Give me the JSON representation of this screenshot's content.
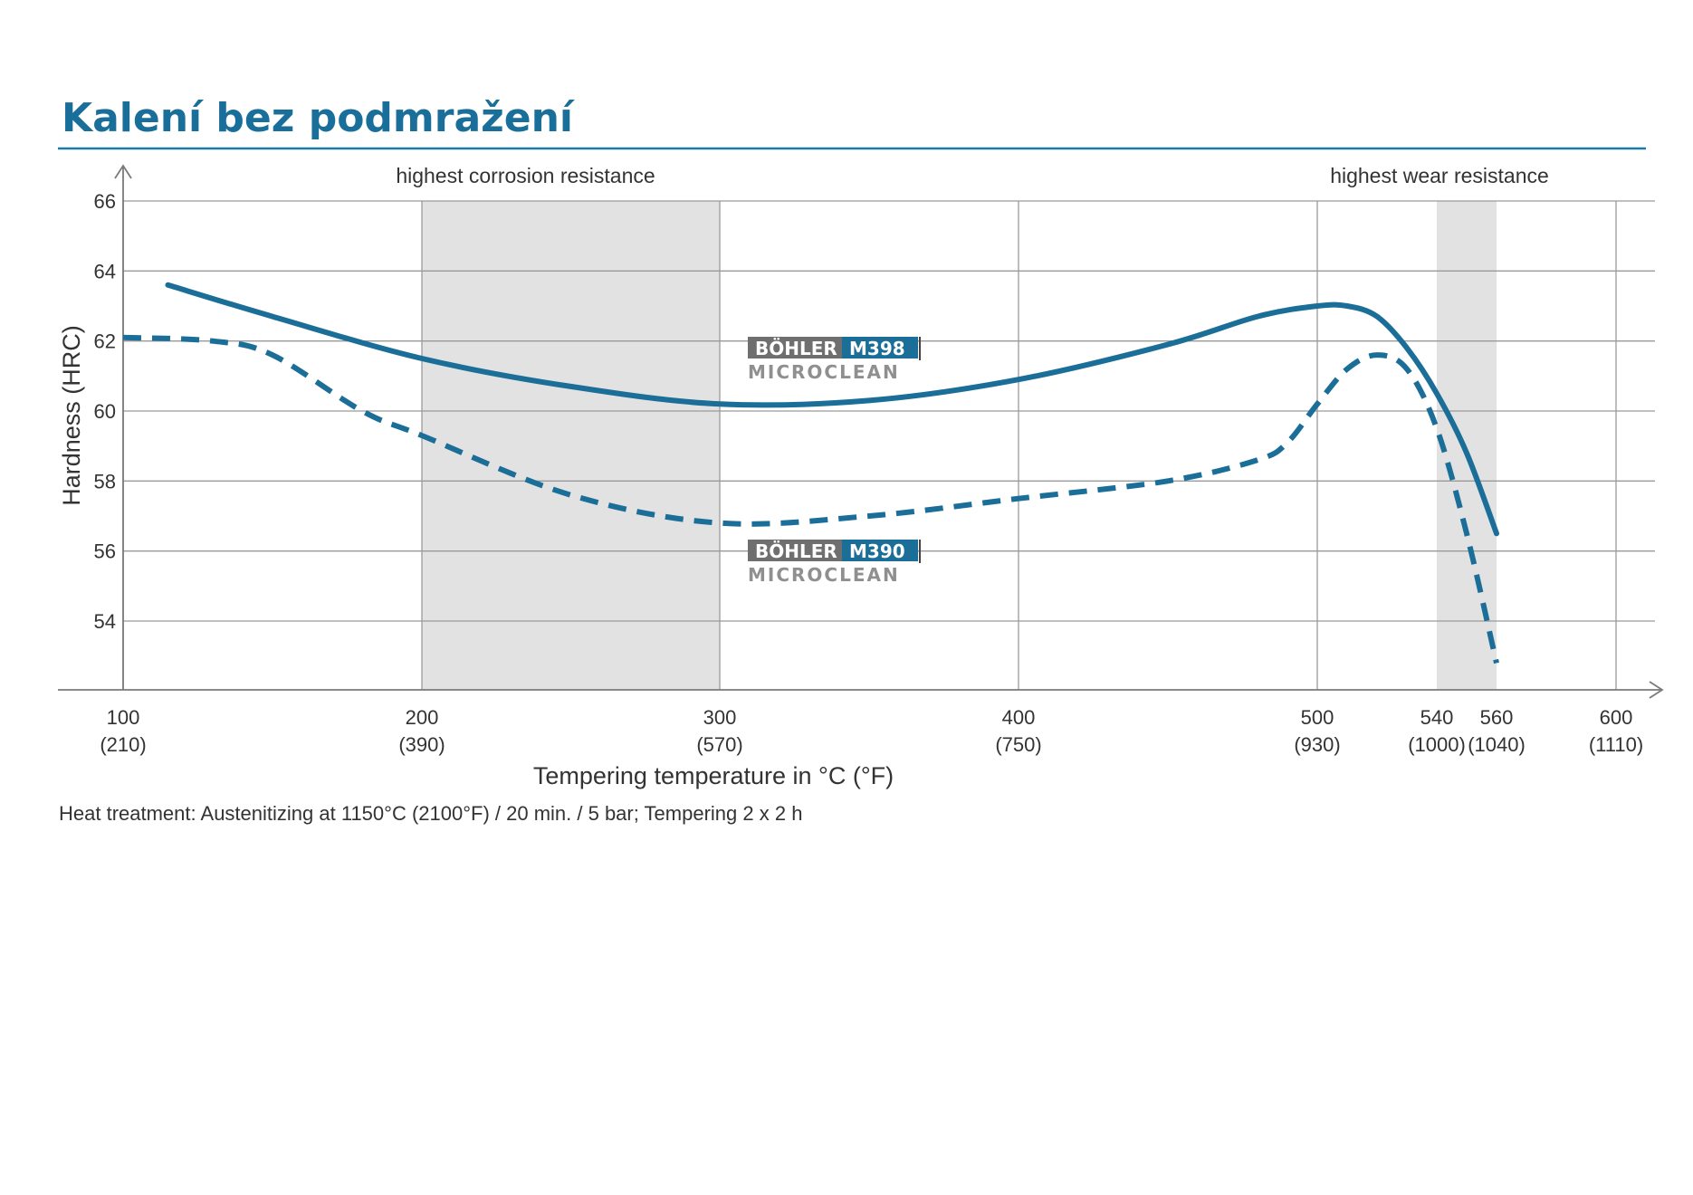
{
  "page": {
    "title": "Kalení bez podmražení"
  },
  "chart_data": {
    "type": "line",
    "xlabel": "Tempering temperature in °C (°F)",
    "ylabel": "Hardness (HRC)",
    "xlim": [
      100,
      600
    ],
    "ylim": [
      52,
      66
    ],
    "x_ticks": [
      {
        "value": 100,
        "label": "100",
        "sublabel": "(210)"
      },
      {
        "value": 200,
        "label": "200",
        "sublabel": "(390)"
      },
      {
        "value": 300,
        "label": "300",
        "sublabel": "(570)"
      },
      {
        "value": 400,
        "label": "400",
        "sublabel": "(750)"
      },
      {
        "value": 500,
        "label": "500",
        "sublabel": "(930)"
      },
      {
        "value": 540,
        "label": "540",
        "sublabel": "(1000)"
      },
      {
        "value": 560,
        "label": "560",
        "sublabel": "(1040)"
      },
      {
        "value": 600,
        "label": "600",
        "sublabel": "(1110)"
      }
    ],
    "x_gridlines": [
      100,
      200,
      300,
      400,
      500,
      600
    ],
    "y_ticks": [
      54,
      56,
      58,
      60,
      62,
      64,
      66
    ],
    "grid": true,
    "bands": [
      {
        "x0": 200,
        "x1": 300,
        "label": "highest corrosion resistance"
      },
      {
        "x0": 540,
        "x1": 560,
        "label": "highest wear resistance"
      }
    ],
    "series": [
      {
        "name": "BÖHLER M398 MICROCLEAN",
        "brand": "BÖHLER",
        "grade": "M398",
        "sub": "MICROCLEAN",
        "style": "solid",
        "color": "#1b6e98",
        "x": [
          115,
          150,
          200,
          250,
          300,
          350,
          400,
          450,
          480,
          500,
          510,
          520,
          530,
          540,
          550,
          560
        ],
        "y": [
          63.6,
          62.7,
          61.5,
          60.7,
          60.2,
          60.3,
          60.9,
          61.9,
          62.7,
          63.0,
          63.0,
          62.7,
          61.8,
          60.5,
          58.8,
          56.5
        ]
      },
      {
        "name": "BÖHLER M390 MICROCLEAN",
        "brand": "BÖHLER",
        "grade": "M390",
        "sub": "MICROCLEAN",
        "style": "dashed",
        "color": "#1b6e98",
        "x": [
          100,
          130,
          150,
          180,
          200,
          250,
          300,
          350,
          400,
          450,
          480,
          490,
          500,
          510,
          520,
          530,
          540,
          550,
          560
        ],
        "y": [
          62.1,
          62.0,
          61.6,
          60.0,
          59.3,
          57.6,
          56.8,
          57.0,
          57.5,
          58.0,
          58.6,
          59.1,
          60.2,
          61.2,
          61.6,
          61.2,
          59.5,
          56.5,
          52.8
        ]
      }
    ]
  },
  "footnote": "Heat treatment: Austenitizing at 1150°C (2100°F) / 20 min. / 5 bar; Tempering 2 x 2 h"
}
